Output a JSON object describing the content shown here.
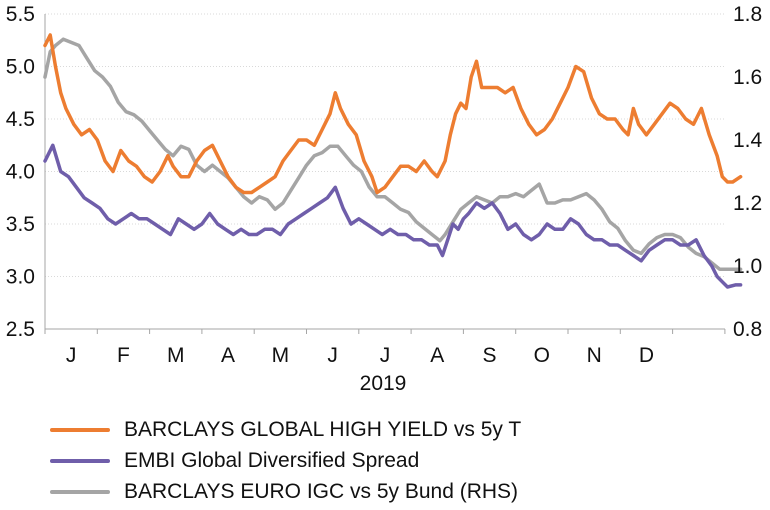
{
  "chart_data": {
    "type": "line",
    "xlabel": "2019",
    "x_ticks": [
      "J",
      "F",
      "M",
      "A",
      "M",
      "J",
      "J",
      "A",
      "S",
      "O",
      "N",
      "D"
    ],
    "y_left": {
      "min": 2.5,
      "max": 5.5,
      "ticks": [
        "5.5",
        "5.0",
        "4.5",
        "4.0",
        "3.5",
        "3.0",
        "2.5"
      ]
    },
    "y_right": {
      "min": 0.8,
      "max": 1.8,
      "ticks": [
        "1.8",
        "1.6",
        "1.4",
        "1.2",
        "1.0",
        "0.8"
      ]
    },
    "series": [
      {
        "name": "BARCLAYS GLOBAL HIGH YIELD vs 5y T",
        "axis": "left",
        "color": "#ED7D31",
        "points": [
          [
            0.0,
            5.2
          ],
          [
            0.1,
            5.3
          ],
          [
            0.2,
            5.0
          ],
          [
            0.3,
            4.75
          ],
          [
            0.4,
            4.6
          ],
          [
            0.55,
            4.45
          ],
          [
            0.7,
            4.35
          ],
          [
            0.85,
            4.4
          ],
          [
            1.0,
            4.3
          ],
          [
            1.15,
            4.1
          ],
          [
            1.3,
            4.0
          ],
          [
            1.45,
            4.2
          ],
          [
            1.6,
            4.1
          ],
          [
            1.75,
            4.05
          ],
          [
            1.9,
            3.95
          ],
          [
            2.05,
            3.9
          ],
          [
            2.2,
            4.0
          ],
          [
            2.35,
            4.15
          ],
          [
            2.45,
            4.05
          ],
          [
            2.6,
            3.95
          ],
          [
            2.75,
            3.95
          ],
          [
            2.9,
            4.1
          ],
          [
            3.05,
            4.2
          ],
          [
            3.2,
            4.25
          ],
          [
            3.35,
            4.1
          ],
          [
            3.5,
            3.95
          ],
          [
            3.65,
            3.85
          ],
          [
            3.8,
            3.8
          ],
          [
            3.95,
            3.8
          ],
          [
            4.1,
            3.85
          ],
          [
            4.25,
            3.9
          ],
          [
            4.4,
            3.95
          ],
          [
            4.55,
            4.1
          ],
          [
            4.7,
            4.2
          ],
          [
            4.85,
            4.3
          ],
          [
            5.0,
            4.3
          ],
          [
            5.15,
            4.25
          ],
          [
            5.3,
            4.4
          ],
          [
            5.45,
            4.55
          ],
          [
            5.55,
            4.75
          ],
          [
            5.65,
            4.6
          ],
          [
            5.8,
            4.45
          ],
          [
            5.95,
            4.35
          ],
          [
            6.1,
            4.1
          ],
          [
            6.25,
            3.95
          ],
          [
            6.35,
            3.8
          ],
          [
            6.5,
            3.85
          ],
          [
            6.65,
            3.95
          ],
          [
            6.8,
            4.05
          ],
          [
            6.95,
            4.05
          ],
          [
            7.1,
            4.0
          ],
          [
            7.25,
            4.1
          ],
          [
            7.4,
            4.0
          ],
          [
            7.5,
            3.95
          ],
          [
            7.65,
            4.1
          ],
          [
            7.75,
            4.35
          ],
          [
            7.85,
            4.55
          ],
          [
            7.95,
            4.65
          ],
          [
            8.05,
            4.6
          ],
          [
            8.15,
            4.9
          ],
          [
            8.25,
            5.05
          ],
          [
            8.35,
            4.8
          ],
          [
            8.5,
            4.8
          ],
          [
            8.65,
            4.8
          ],
          [
            8.8,
            4.75
          ],
          [
            8.95,
            4.8
          ],
          [
            9.1,
            4.6
          ],
          [
            9.25,
            4.45
          ],
          [
            9.4,
            4.35
          ],
          [
            9.55,
            4.4
          ],
          [
            9.7,
            4.5
          ],
          [
            9.85,
            4.65
          ],
          [
            10.0,
            4.8
          ],
          [
            10.15,
            5.0
          ],
          [
            10.3,
            4.95
          ],
          [
            10.45,
            4.7
          ],
          [
            10.6,
            4.55
          ],
          [
            10.75,
            4.5
          ],
          [
            10.9,
            4.5
          ],
          [
            11.05,
            4.4
          ],
          [
            11.15,
            4.35
          ],
          [
            11.25,
            4.6
          ],
          [
            11.35,
            4.45
          ],
          [
            11.5,
            4.35
          ],
          [
            11.65,
            4.45
          ],
          [
            11.8,
            4.55
          ],
          [
            11.95,
            4.65
          ],
          [
            12.1,
            4.6
          ],
          [
            12.25,
            4.5
          ],
          [
            12.4,
            4.45
          ],
          [
            12.55,
            4.6
          ],
          [
            12.7,
            4.35
          ],
          [
            12.85,
            4.15
          ],
          [
            12.95,
            3.95
          ],
          [
            13.05,
            3.9
          ],
          [
            13.15,
            3.9
          ],
          [
            13.3,
            3.95
          ]
        ]
      },
      {
        "name": "EMBI Global Diversified Spread",
        "axis": "left",
        "color": "#6F5EAA",
        "points": [
          [
            0.0,
            4.1
          ],
          [
            0.15,
            4.25
          ],
          [
            0.3,
            4.0
          ],
          [
            0.45,
            3.95
          ],
          [
            0.6,
            3.85
          ],
          [
            0.75,
            3.75
          ],
          [
            0.9,
            3.7
          ],
          [
            1.05,
            3.65
          ],
          [
            1.2,
            3.55
          ],
          [
            1.35,
            3.5
          ],
          [
            1.5,
            3.55
          ],
          [
            1.65,
            3.6
          ],
          [
            1.8,
            3.55
          ],
          [
            1.95,
            3.55
          ],
          [
            2.1,
            3.5
          ],
          [
            2.25,
            3.45
          ],
          [
            2.4,
            3.4
          ],
          [
            2.55,
            3.55
          ],
          [
            2.7,
            3.5
          ],
          [
            2.85,
            3.45
          ],
          [
            3.0,
            3.5
          ],
          [
            3.15,
            3.6
          ],
          [
            3.3,
            3.5
          ],
          [
            3.45,
            3.45
          ],
          [
            3.6,
            3.4
          ],
          [
            3.75,
            3.45
          ],
          [
            3.9,
            3.4
          ],
          [
            4.05,
            3.4
          ],
          [
            4.2,
            3.45
          ],
          [
            4.35,
            3.45
          ],
          [
            4.5,
            3.4
          ],
          [
            4.65,
            3.5
          ],
          [
            4.8,
            3.55
          ],
          [
            4.95,
            3.6
          ],
          [
            5.1,
            3.65
          ],
          [
            5.25,
            3.7
          ],
          [
            5.4,
            3.75
          ],
          [
            5.55,
            3.85
          ],
          [
            5.7,
            3.65
          ],
          [
            5.85,
            3.5
          ],
          [
            6.0,
            3.55
          ],
          [
            6.15,
            3.5
          ],
          [
            6.3,
            3.45
          ],
          [
            6.45,
            3.4
          ],
          [
            6.6,
            3.45
          ],
          [
            6.75,
            3.4
          ],
          [
            6.9,
            3.4
          ],
          [
            7.05,
            3.35
          ],
          [
            7.2,
            3.35
          ],
          [
            7.35,
            3.3
          ],
          [
            7.5,
            3.3
          ],
          [
            7.6,
            3.2
          ],
          [
            7.7,
            3.35
          ],
          [
            7.8,
            3.5
          ],
          [
            7.9,
            3.45
          ],
          [
            8.0,
            3.55
          ],
          [
            8.1,
            3.6
          ],
          [
            8.25,
            3.7
          ],
          [
            8.4,
            3.65
          ],
          [
            8.55,
            3.7
          ],
          [
            8.7,
            3.6
          ],
          [
            8.85,
            3.45
          ],
          [
            9.0,
            3.5
          ],
          [
            9.15,
            3.4
          ],
          [
            9.3,
            3.35
          ],
          [
            9.45,
            3.4
          ],
          [
            9.6,
            3.5
          ],
          [
            9.75,
            3.45
          ],
          [
            9.9,
            3.45
          ],
          [
            10.05,
            3.55
          ],
          [
            10.2,
            3.5
          ],
          [
            10.35,
            3.4
          ],
          [
            10.5,
            3.35
          ],
          [
            10.65,
            3.35
          ],
          [
            10.8,
            3.3
          ],
          [
            10.95,
            3.3
          ],
          [
            11.1,
            3.25
          ],
          [
            11.25,
            3.2
          ],
          [
            11.4,
            3.15
          ],
          [
            11.55,
            3.25
          ],
          [
            11.7,
            3.3
          ],
          [
            11.85,
            3.35
          ],
          [
            12.0,
            3.35
          ],
          [
            12.15,
            3.3
          ],
          [
            12.3,
            3.3
          ],
          [
            12.45,
            3.35
          ],
          [
            12.6,
            3.2
          ],
          [
            12.75,
            3.1
          ],
          [
            12.85,
            3.0
          ],
          [
            12.95,
            2.95
          ],
          [
            13.05,
            2.9
          ],
          [
            13.2,
            2.92
          ],
          [
            13.3,
            2.92
          ]
        ]
      },
      {
        "name": "BARCLAYS EURO IGC vs 5y Bund (RHS)",
        "axis": "right",
        "color": "#A5A5A5",
        "points": [
          [
            0.0,
            1.6
          ],
          [
            0.1,
            1.68
          ],
          [
            0.2,
            1.7
          ],
          [
            0.35,
            1.72
          ],
          [
            0.5,
            1.71
          ],
          [
            0.65,
            1.7
          ],
          [
            0.8,
            1.66
          ],
          [
            0.95,
            1.62
          ],
          [
            1.1,
            1.6
          ],
          [
            1.25,
            1.57
          ],
          [
            1.4,
            1.52
          ],
          [
            1.55,
            1.49
          ],
          [
            1.7,
            1.48
          ],
          [
            1.85,
            1.46
          ],
          [
            2.0,
            1.43
          ],
          [
            2.15,
            1.4
          ],
          [
            2.3,
            1.37
          ],
          [
            2.45,
            1.35
          ],
          [
            2.6,
            1.38
          ],
          [
            2.75,
            1.37
          ],
          [
            2.9,
            1.32
          ],
          [
            3.05,
            1.3
          ],
          [
            3.2,
            1.32
          ],
          [
            3.35,
            1.3
          ],
          [
            3.5,
            1.28
          ],
          [
            3.65,
            1.25
          ],
          [
            3.8,
            1.22
          ],
          [
            3.95,
            1.2
          ],
          [
            4.1,
            1.22
          ],
          [
            4.25,
            1.21
          ],
          [
            4.4,
            1.18
          ],
          [
            4.55,
            1.2
          ],
          [
            4.7,
            1.24
          ],
          [
            4.85,
            1.28
          ],
          [
            5.0,
            1.32
          ],
          [
            5.15,
            1.35
          ],
          [
            5.3,
            1.36
          ],
          [
            5.45,
            1.38
          ],
          [
            5.6,
            1.38
          ],
          [
            5.75,
            1.35
          ],
          [
            5.9,
            1.32
          ],
          [
            6.05,
            1.3
          ],
          [
            6.2,
            1.25
          ],
          [
            6.35,
            1.22
          ],
          [
            6.5,
            1.22
          ],
          [
            6.65,
            1.2
          ],
          [
            6.8,
            1.18
          ],
          [
            6.95,
            1.17
          ],
          [
            7.1,
            1.14
          ],
          [
            7.25,
            1.12
          ],
          [
            7.4,
            1.1
          ],
          [
            7.55,
            1.08
          ],
          [
            7.65,
            1.1
          ],
          [
            7.8,
            1.14
          ],
          [
            7.95,
            1.18
          ],
          [
            8.1,
            1.2
          ],
          [
            8.25,
            1.22
          ],
          [
            8.4,
            1.21
          ],
          [
            8.55,
            1.2
          ],
          [
            8.7,
            1.22
          ],
          [
            8.85,
            1.22
          ],
          [
            9.0,
            1.23
          ],
          [
            9.15,
            1.22
          ],
          [
            9.3,
            1.24
          ],
          [
            9.45,
            1.26
          ],
          [
            9.6,
            1.2
          ],
          [
            9.75,
            1.2
          ],
          [
            9.9,
            1.21
          ],
          [
            10.05,
            1.21
          ],
          [
            10.2,
            1.22
          ],
          [
            10.35,
            1.23
          ],
          [
            10.5,
            1.21
          ],
          [
            10.65,
            1.18
          ],
          [
            10.8,
            1.14
          ],
          [
            10.95,
            1.12
          ],
          [
            11.1,
            1.08
          ],
          [
            11.25,
            1.05
          ],
          [
            11.4,
            1.04
          ],
          [
            11.55,
            1.07
          ],
          [
            11.7,
            1.09
          ],
          [
            11.85,
            1.1
          ],
          [
            12.0,
            1.1
          ],
          [
            12.15,
            1.09
          ],
          [
            12.3,
            1.06
          ],
          [
            12.45,
            1.04
          ],
          [
            12.6,
            1.03
          ],
          [
            12.75,
            1.01
          ],
          [
            12.9,
            0.99
          ],
          [
            13.05,
            0.99
          ],
          [
            13.2,
            0.99
          ],
          [
            13.3,
            0.99
          ]
        ]
      }
    ]
  }
}
